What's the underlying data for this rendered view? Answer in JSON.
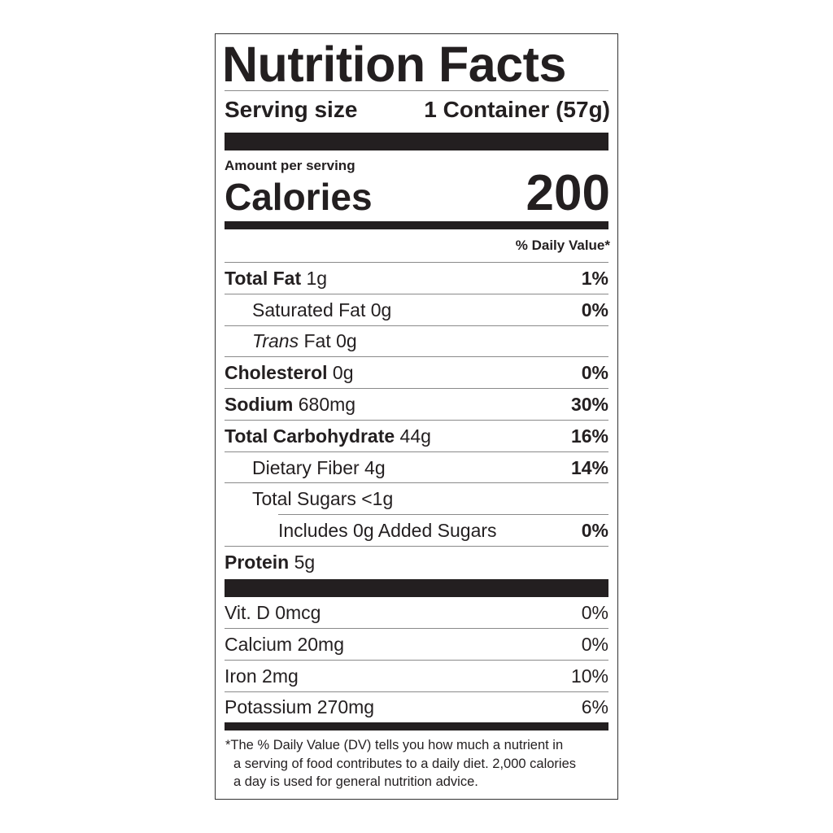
{
  "title": "Nutrition Facts",
  "serving": {
    "label": "Serving size",
    "value": "1 Container (57g)"
  },
  "amount_per_serving": "Amount per serving",
  "calories": {
    "label": "Calories",
    "value": "200"
  },
  "daily_value_header": "% Daily Value*",
  "nutrients": [
    {
      "name": "Total Fat",
      "amount": "1g",
      "dv": "1%"
    },
    {
      "name": "Saturated Fat",
      "amount": "0g",
      "dv": "0%"
    },
    {
      "name": "Trans",
      "name2": "Fat",
      "amount": "0g",
      "dv": ""
    },
    {
      "name": "Cholesterol",
      "amount": "0g",
      "dv": "0%"
    },
    {
      "name": "Sodium",
      "amount": "680mg",
      "dv": "30%"
    },
    {
      "name": "Total Carbohydrate",
      "amount": "44g",
      "dv": "16%"
    },
    {
      "name": "Dietary Fiber",
      "amount": "4g",
      "dv": "14%"
    },
    {
      "name": "Total Sugars",
      "amount": "<1g",
      "dv": ""
    },
    {
      "name": "Includes 0g Added Sugars",
      "amount": "",
      "dv": "0%"
    },
    {
      "name": "Protein",
      "amount": "5g",
      "dv": ""
    }
  ],
  "vitamins": [
    {
      "name": "Vit. D 0mcg",
      "dv": "0%"
    },
    {
      "name": "Calcium 20mg",
      "dv": "0%"
    },
    {
      "name": "Iron 2mg",
      "dv": "10%"
    },
    {
      "name": "Potassium 270mg",
      "dv": "6%"
    }
  ],
  "footnote": {
    "star": "*",
    "line1": "The % Daily Value (DV) tells you how much a nutrient in",
    "line2": "a serving of food contributes to a daily diet. 2,000 calories",
    "line3": "a day is used for general nutrition advice."
  }
}
